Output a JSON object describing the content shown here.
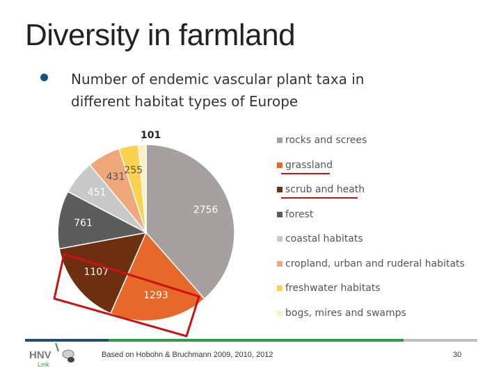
{
  "slide": {
    "title": "Diversity in farmland",
    "bullet_line1": "Number of endemic vascular plant taxa in",
    "bullet_line2": "different habitat types of Europe",
    "source": "Based on Hobohn & Bruchmann 2009, 2010, 2012",
    "page_number": "30",
    "logo_text": "HNV",
    "logo_subtext": "Link"
  },
  "chart_data": {
    "type": "pie",
    "categories": [
      "rocks and screes",
      "grassland",
      "scrub and heath",
      "forest",
      "coastal habitats",
      "cropland, urban and ruderal habitats",
      "freshwater habitats",
      "bogs, mires and swamps"
    ],
    "values": [
      2756,
      1293,
      1107,
      761,
      451,
      431,
      255,
      101
    ],
    "colors": [
      "#a6a19e",
      "#e8682a",
      "#6e2e10",
      "#5c5c5c",
      "#c8c8c8",
      "#f0a77a",
      "#fbd24e",
      "#fcefc4"
    ],
    "label_colors": [
      "#ffffff",
      "#ffffff",
      "#ffffff",
      "#ffffff",
      "#ffffff",
      "#555555",
      "#555555",
      "#222222"
    ],
    "legend_position": "right",
    "start_angle_deg": 0,
    "direction": "clockwise"
  },
  "annotations": {
    "underline_color": "#cc1111",
    "underlined_legend_items": [
      "grassland",
      "scrub and heath"
    ],
    "highlight_box_color": "#cc1111"
  },
  "footer": {
    "colors": [
      "#1f4e79",
      "#2e9e46",
      "#bfbfbf"
    ]
  }
}
